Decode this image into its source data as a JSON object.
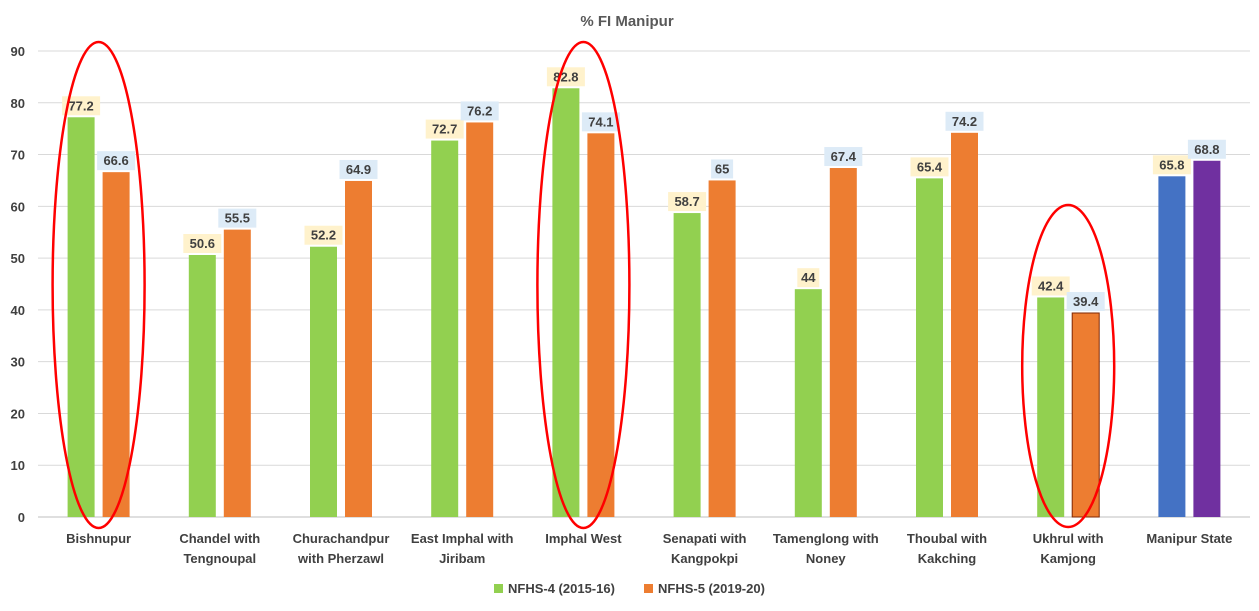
{
  "chart_data": {
    "type": "bar",
    "title": "% FI Manipur",
    "xlabel": "",
    "ylabel": "",
    "ylim": [
      0,
      90
    ],
    "yticks": [
      "0",
      "10",
      "20",
      "30",
      "40",
      "50",
      "60",
      "70",
      "80",
      "90"
    ],
    "grid": true,
    "legend_position": "bottom",
    "categories": [
      [
        "Bishnupur"
      ],
      [
        "Chandel with",
        "Tengnoupal"
      ],
      [
        "Churachandpur",
        "with Pherzawl"
      ],
      [
        "East Imphal with",
        "Jiribam"
      ],
      [
        "Imphal West"
      ],
      [
        "Senapati with",
        "Kangpokpi"
      ],
      [
        "Tamenglong with",
        "Noney"
      ],
      [
        "Thoubal with",
        "Kakching"
      ],
      [
        "Ukhrul with",
        "Kamjong"
      ],
      [
        "Manipur State"
      ]
    ],
    "series": [
      {
        "name": "NFHS-4 (2015-16)",
        "color": "#92d050",
        "label_bg": "#fff2cc",
        "values": [
          77.2,
          50.6,
          52.2,
          72.7,
          82.8,
          58.7,
          44,
          65.4,
          42.4,
          65.8
        ],
        "labels": [
          "77.2",
          "50.6",
          "52.2",
          "72.7",
          "82.8",
          "58.7",
          "44",
          "65.4",
          "42.4",
          "65.8"
        ]
      },
      {
        "name": "NFHS-5 (2019-20)",
        "color": "#ed7d31",
        "label_bg": "#ddebf7",
        "values": [
          66.6,
          55.5,
          64.9,
          76.2,
          74.1,
          65,
          67.4,
          74.2,
          39.4,
          68.8
        ],
        "labels": [
          "66.6",
          "55.5",
          "64.9",
          "76.2",
          "74.1",
          "65",
          "67.4",
          "74.2",
          "39.4",
          "68.8"
        ]
      }
    ],
    "color_overrides": {
      "manipur_state_series1": "#4472c4",
      "manipur_state_series2": "#7030a0"
    },
    "highlight_color": "#ff0000",
    "highlighted_categories": [
      "Bishnupur",
      "Imphal West",
      "Ukhrul with Kamjong"
    ]
  }
}
